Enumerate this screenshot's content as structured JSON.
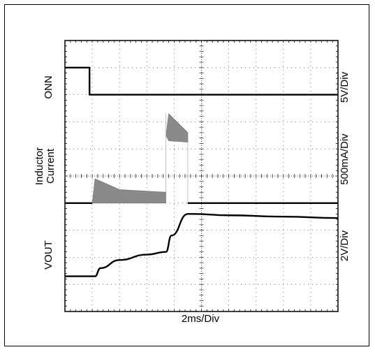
{
  "chart_data": {
    "type": "line",
    "title": "",
    "xlabel": "2ms/Div",
    "x_divisions": 10,
    "y_divisions": 10,
    "grid": true,
    "grid_style": "dotted",
    "channels": [
      {
        "name": "ONN",
        "scale": "5V/Div"
      },
      {
        "name": "Inductor Current",
        "scale": "500mA/Div"
      },
      {
        "name": "VOUT",
        "scale": "2V/Div"
      }
    ],
    "series": [
      {
        "name": "ONN",
        "x": [
          0,
          0.9,
          0.9,
          10
        ],
        "y": [
          9.0,
          9.0,
          8.0,
          8.0
        ]
      },
      {
        "name": "Inductor Current",
        "baseline": 4.0,
        "x": [
          0,
          1.0,
          1.0,
          1.1,
          2.0,
          3.7,
          3.7,
          3.8,
          4.5,
          4.5,
          10
        ],
        "y": [
          4.0,
          4.0,
          4.0,
          4.9,
          4.5,
          4.4,
          4.0,
          7.3,
          6.6,
          4.0,
          4.0
        ],
        "envelope_upper_x": [
          1.0,
          1.1,
          2.0,
          3.7
        ],
        "envelope_upper_y": [
          4.0,
          4.9,
          4.5,
          4.4
        ],
        "envelope2_upper_x": [
          3.7,
          3.8,
          4.5
        ],
        "envelope2_upper_y": [
          4.0,
          7.3,
          6.6
        ]
      },
      {
        "name": "VOUT",
        "x": [
          0,
          1.1,
          1.3,
          2.0,
          3.0,
          3.7,
          3.9,
          4.5,
          4.7,
          6.0,
          8.0,
          10
        ],
        "y": [
          1.3,
          1.3,
          1.6,
          1.9,
          2.1,
          2.2,
          2.8,
          3.6,
          3.6,
          3.55,
          3.5,
          3.45
        ]
      }
    ],
    "marker_color": "#000000",
    "envelope_color": "#8a8a8a"
  }
}
